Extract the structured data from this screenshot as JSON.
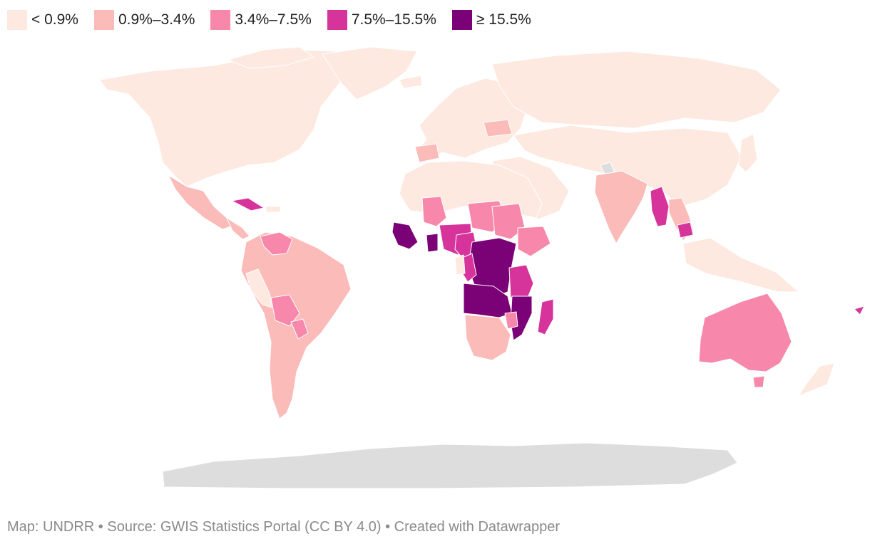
{
  "legend": [
    {
      "label": "< 0.9%",
      "color": "#fde9e0"
    },
    {
      "label": "0.9%–3.4%",
      "color": "#fbbbb8"
    },
    {
      "label": "3.4%–7.5%",
      "color": "#f788ac"
    },
    {
      "label": "7.5%–15.5%",
      "color": "#d6339b"
    },
    {
      "label": "≥ 15.5%",
      "color": "#7b0177"
    }
  ],
  "no_data_color": "#dddddd",
  "footer": {
    "text": "Map: UNDRR • Source: GWIS Statistics Portal (CC BY 4.0) • Created with Datawrapper"
  }
}
